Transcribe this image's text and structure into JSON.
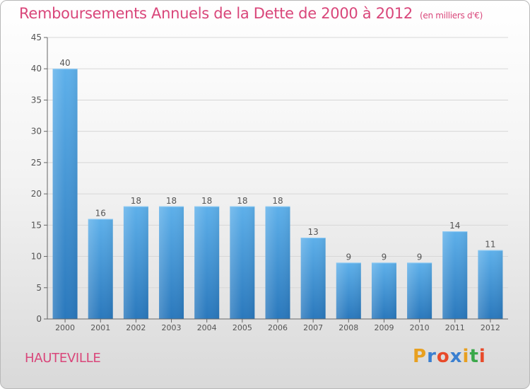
{
  "title": "Remboursements Annuels de la Dette de 2000 à 2012",
  "unit": "(en milliers d'€)",
  "commune": "HAUTEVILLE",
  "logo": {
    "letters": [
      "P",
      "r",
      "o",
      "x",
      "i",
      "t",
      "i"
    ],
    "colors": [
      "#e8a020",
      "#3a7fd0",
      "#e84a2a",
      "#3a7fd0",
      "#e8a020",
      "#3aa84a",
      "#e84a2a"
    ]
  },
  "colors": {
    "title": "#d9467a",
    "bar_light": "#5eb0ea",
    "bar_dark": "#2a78bc",
    "grid": "#d7d7d7",
    "axis": "#666666"
  },
  "chart_data": {
    "type": "bar",
    "title": "Remboursements Annuels de la Dette de 2000 à 2012",
    "xlabel": "",
    "ylabel": "en milliers d'€",
    "categories": [
      "2000",
      "2001",
      "2002",
      "2003",
      "2004",
      "2005",
      "2006",
      "2007",
      "2008",
      "2009",
      "2010",
      "2011",
      "2012"
    ],
    "values": [
      40,
      16,
      18,
      18,
      18,
      18,
      18,
      13,
      9,
      9,
      9,
      14,
      11
    ],
    "ylim": [
      0,
      45
    ],
    "yticks": [
      0,
      5,
      10,
      15,
      20,
      25,
      30,
      35,
      40,
      45
    ],
    "grid": true
  }
}
